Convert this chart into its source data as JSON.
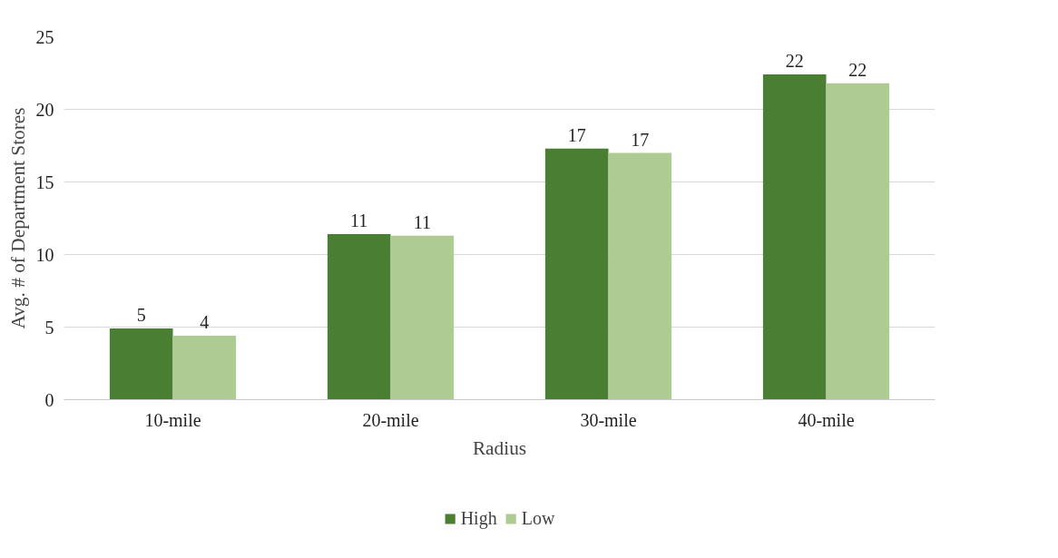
{
  "chart_data": {
    "type": "bar",
    "xlabel": "Radius",
    "ylabel": "Avg. # of Department Stores",
    "categories": [
      "10-mile",
      "20-mile",
      "30-mile",
      "40-mile"
    ],
    "series": [
      {
        "name": "High",
        "color": "#4a7f33",
        "values": [
          4.9,
          11.4,
          17.3,
          22.4
        ],
        "value_labels": [
          "5",
          "11",
          "17",
          "22"
        ]
      },
      {
        "name": "Low",
        "color": "#aecb93",
        "values": [
          4.4,
          11.3,
          17.0,
          21.8
        ],
        "value_labels": [
          "4",
          "11",
          "17",
          "22"
        ]
      }
    ],
    "ylim": [
      0,
      25
    ],
    "yticks": [
      0,
      5,
      10,
      15,
      20,
      25
    ],
    "grid": "y",
    "legend": "bottom"
  }
}
